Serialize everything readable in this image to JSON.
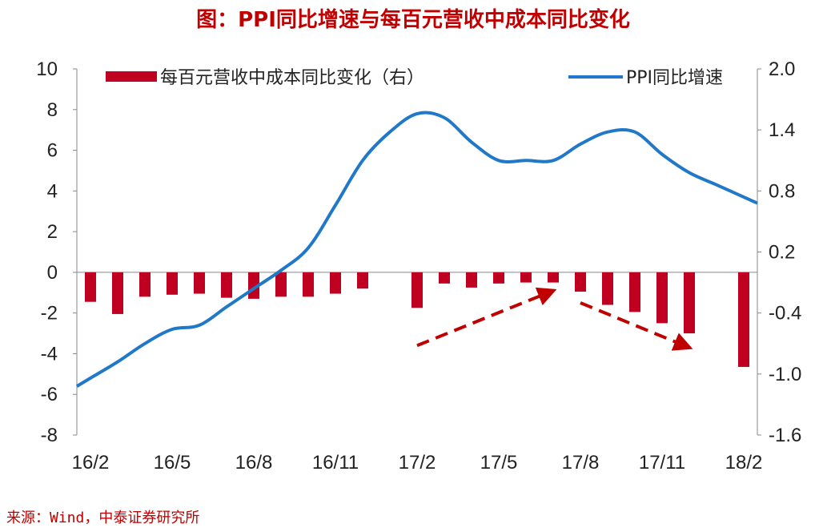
{
  "chart_data": {
    "type": "bar+line",
    "title": "图：PPI同比增速与每百元营收中成本同比变化",
    "source": "来源：Wind，中泰证券研究所",
    "x": [
      "16/2",
      "16/3",
      "16/4",
      "16/5",
      "16/6",
      "16/7",
      "16/8",
      "16/9",
      "16/10",
      "16/11",
      "16/12",
      "17/1",
      "17/2",
      "17/3",
      "17/4",
      "17/5",
      "17/6",
      "17/7",
      "17/8",
      "17/9",
      "17/10",
      "17/11",
      "17/12",
      "18/1",
      "18/2"
    ],
    "x_tick_labels": [
      "16/2",
      "16/5",
      "16/8",
      "16/11",
      "17/2",
      "17/5",
      "17/8",
      "17/11",
      "18/2"
    ],
    "y_left_ticks": [
      "10",
      "8",
      "6",
      "4",
      "2",
      "0",
      "-2",
      "-4",
      "-6",
      "-8"
    ],
    "y_right_ticks": [
      "2.0",
      "1.4",
      "0.8",
      "0.2",
      "-0.4",
      "-1.0",
      "-1.6"
    ],
    "ylim_left": [
      -8,
      10
    ],
    "ylim_right": [
      -1.6,
      2.0
    ],
    "series": [
      {
        "name": "每百元营收中成本同比变化（右）",
        "type": "bar",
        "axis": "right",
        "color": "#c00020",
        "values": [
          -0.29,
          -0.41,
          -0.24,
          -0.22,
          -0.21,
          -0.25,
          -0.26,
          -0.24,
          -0.24,
          -0.21,
          -0.16,
          null,
          -0.35,
          -0.11,
          -0.15,
          -0.11,
          -0.1,
          -0.1,
          -0.19,
          -0.32,
          -0.39,
          -0.5,
          -0.6,
          null,
          -0.93
        ]
      },
      {
        "name": "PPI同比增速",
        "type": "line",
        "axis": "left",
        "color": "#1f78c8",
        "values": [
          -5.2,
          -4.4,
          -3.5,
          -2.8,
          -2.6,
          -1.7,
          -0.8,
          0.1,
          1.2,
          3.3,
          5.5,
          6.9,
          7.8,
          7.6,
          6.4,
          5.5,
          5.5,
          5.5,
          6.3,
          6.9,
          6.9,
          5.8,
          4.9,
          4.3,
          3.7
        ]
      }
    ],
    "annotations": [
      {
        "type": "arrow",
        "style": "dashed",
        "color": "#c00000",
        "from_index": 12,
        "from_value_left": -3.6,
        "to_index": 17,
        "to_value_left": -0.9
      },
      {
        "type": "arrow",
        "style": "dashed",
        "color": "#c00000",
        "from_index": 18,
        "from_value_left": -1.5,
        "to_index": 22,
        "to_value_left": -3.7
      }
    ],
    "legend_position": "top",
    "grid": false
  }
}
